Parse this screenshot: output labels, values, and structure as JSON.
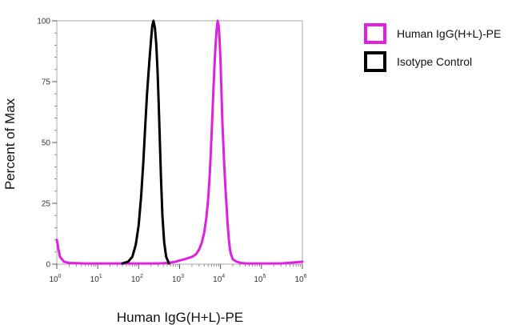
{
  "chart_data": {
    "type": "line",
    "title": "",
    "xlabel": "Human IgG(H+L)-PE",
    "ylabel": "Percent of Max",
    "x_scale": "log",
    "xlim": [
      1,
      1000000
    ],
    "ylim": [
      0,
      100
    ],
    "y_ticks": [
      {
        "value": 0,
        "label": "0"
      },
      {
        "value": 25,
        "label": "25"
      },
      {
        "value": 50,
        "label": "50"
      },
      {
        "value": 75,
        "label": "75"
      },
      {
        "value": 100,
        "label": "100"
      }
    ],
    "x_ticks": [
      {
        "value": 1,
        "base": "10",
        "exp": "0"
      },
      {
        "value": 10,
        "base": "10",
        "exp": "1"
      },
      {
        "value": 100,
        "base": "10",
        "exp": "2"
      },
      {
        "value": 1000,
        "base": "10",
        "exp": "3"
      },
      {
        "value": 10000,
        "base": "10",
        "exp": "4"
      },
      {
        "value": 100000,
        "base": "10",
        "exp": "5"
      },
      {
        "value": 1000000,
        "base": "10",
        "exp": "6"
      }
    ],
    "grid": false,
    "legend_position": "top-right",
    "series": [
      {
        "name": "Human IgG(H+L)-PE",
        "color": "#E020E0",
        "x": [
          1,
          1.1,
          1.2,
          1.5,
          2,
          5,
          10,
          30,
          100,
          300,
          500,
          800,
          1000,
          1300,
          1600,
          2000,
          2500,
          3000,
          3500,
          4000,
          4500,
          5000,
          5500,
          6000,
          6500,
          7000,
          7500,
          8000,
          8500,
          9000,
          9500,
          10000,
          10500,
          11000,
          12000,
          13000,
          14000,
          15000,
          16000,
          17000,
          18000,
          20000,
          22000,
          25000,
          30000,
          40000,
          60000,
          100000,
          300000,
          1000000
        ],
        "y": [
          10,
          6,
          3,
          1,
          0.5,
          0.3,
          0.3,
          0.3,
          0.3,
          0.3,
          0.5,
          1,
          1.5,
          2,
          2.5,
          3,
          4,
          6,
          9,
          13,
          19,
          27,
          38,
          52,
          66,
          79,
          89,
          96,
          100,
          98,
          92,
          83,
          72,
          60,
          45,
          33,
          24,
          16,
          10,
          6,
          4,
          2,
          1.5,
          1,
          0.6,
          0.3,
          0.3,
          0.3,
          0.3,
          1
        ]
      },
      {
        "name": "Isotype Control",
        "color": "#000000",
        "x": [
          40,
          55,
          70,
          85,
          100,
          115,
          130,
          145,
          160,
          180,
          200,
          215,
          230,
          250,
          270,
          290,
          310,
          330,
          350,
          380,
          420,
          470,
          550
        ],
        "y": [
          0.3,
          1,
          3,
          8,
          16,
          28,
          42,
          57,
          70,
          82,
          92,
          98,
          100,
          97,
          90,
          79,
          65,
          50,
          36,
          20,
          9,
          3,
          0.3
        ]
      }
    ]
  }
}
